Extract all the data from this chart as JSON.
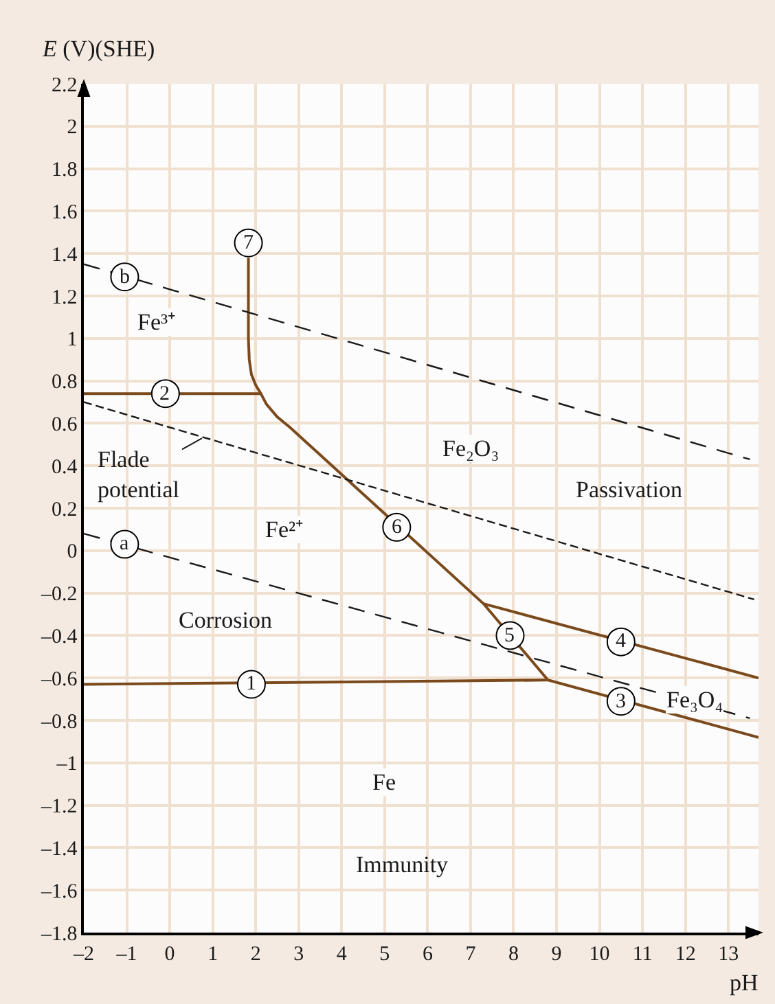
{
  "chart_data": {
    "type": "line",
    "xlabel": "pH",
    "ylabel": "E (V)(SHE)",
    "series": [
      {
        "color": "#7b4a1c",
        "x": [
          1.83,
          1.83,
          1.85,
          1.9,
          2.0,
          2.12,
          2.25,
          2.5,
          2.8,
          7.3,
          8.8,
          13.7,
          null,
          -2,
          2.12,
          null,
          -2,
          8.8,
          null,
          7.3,
          13.7
        ],
        "values": [
          1.38,
          1.0,
          0.9,
          0.83,
          0.78,
          0.74,
          0.69,
          0.63,
          0.58,
          -0.25,
          -0.61,
          -0.88,
          null,
          0.74,
          0.74,
          null,
          -0.63,
          -0.61,
          null,
          -0.25,
          -0.6
        ]
      },
      {
        "color": "#1a1a1a",
        "line_style": "dashed",
        "x": [
          -2,
          13.5
        ],
        "values": [
          0.08,
          -0.79
        ]
      },
      {
        "color": "#1a1a1a",
        "line_style": "dashed",
        "x": [
          -2,
          13.5
        ],
        "values": [
          1.35,
          0.43
        ]
      },
      {
        "color": "#1a1a1a",
        "line_style": "dotted",
        "x": [
          -2,
          13.6
        ],
        "values": [
          0.7,
          -0.23
        ]
      }
    ],
    "xlim": [
      -2,
      13.7
    ],
    "ylim": [
      -1.8,
      2.2
    ],
    "xticks": [
      {
        "value": -2,
        "label": "–2"
      },
      {
        "value": -1,
        "label": "–1"
      },
      0,
      1,
      2,
      3,
      4,
      5,
      6,
      7,
      8,
      9,
      10,
      11,
      12,
      13
    ],
    "yticks": [
      {
        "value": -1.8,
        "label": "–1.8"
      },
      {
        "value": -1.6,
        "label": "–1.6"
      },
      {
        "value": -1.4,
        "label": "–1.4"
      },
      {
        "value": -1.2,
        "label": "–1.2"
      },
      {
        "value": -1,
        "label": "–1"
      },
      {
        "value": -0.8,
        "label": "–0.8"
      },
      {
        "value": -0.6,
        "label": "–0.6"
      },
      {
        "value": -0.4,
        "label": "–0.4"
      },
      {
        "value": -0.2,
        "label": "–0.2"
      },
      0,
      0.2,
      0.4,
      0.6,
      0.8,
      1,
      1.2,
      1.4,
      1.6,
      1.8,
      2,
      2.2
    ],
    "grid": true,
    "marker": "none",
    "line_style": "solid",
    "annotations": [
      {
        "text": "7",
        "x": 1.83,
        "y": 1.45
      },
      {
        "text": "b",
        "x": -1.05,
        "y": 1.29
      },
      {
        "text": "2",
        "x": -0.1,
        "y": 0.74
      },
      {
        "text": "a",
        "x": -1.05,
        "y": 0.03
      },
      {
        "text": "6",
        "x": 5.28,
        "y": 0.11
      },
      {
        "text": "5",
        "x": 7.92,
        "y": -0.4
      },
      {
        "text": "4",
        "x": 10.5,
        "y": -0.43
      },
      {
        "text": "1",
        "x": 1.9,
        "y": -0.63
      },
      {
        "text": "3",
        "x": 10.5,
        "y": -0.71
      },
      {
        "text": "Flade\npotential",
        "x": 0.75,
        "y": 0.53
      },
      {
        "text": "Fe³⁺",
        "x": -0.3,
        "y": 1.08
      },
      {
        "text": "Fe²⁺",
        "x": 2.67,
        "y": 0.1
      },
      {
        "text": "Fe₂O₃",
        "x": 7.0,
        "y": 0.48
      },
      {
        "text": "Fe₃O₄",
        "x": 12.2,
        "y": -0.7
      },
      {
        "text": "Fe",
        "x": 5.0,
        "y": -1.09
      },
      "Passivation",
      "Corrosion",
      "Immunity"
    ]
  }
}
